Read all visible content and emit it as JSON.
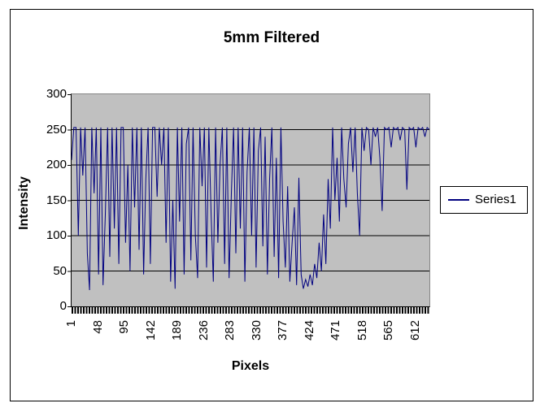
{
  "chart_data": {
    "type": "line",
    "title": "5mm Filtered",
    "xlabel": "Pixels",
    "ylabel": "Intensity",
    "ylim": [
      0,
      300
    ],
    "yticks": [
      0,
      50,
      100,
      150,
      200,
      250,
      300
    ],
    "xticks": [
      1,
      48,
      95,
      142,
      189,
      236,
      283,
      330,
      377,
      424,
      471,
      518,
      565,
      612
    ],
    "grid": true,
    "legend_position": "right",
    "plot_background": "#c0c0c0",
    "grid_color": "#000000",
    "series": [
      {
        "name": "Series1",
        "color": "#000080",
        "x_start": 1,
        "x_step": 4,
        "values": [
          207,
          253,
          253,
          100,
          253,
          185,
          253,
          75,
          23,
          253,
          160,
          253,
          45,
          253,
          30,
          130,
          253,
          70,
          253,
          110,
          253,
          60,
          253,
          253,
          90,
          200,
          50,
          253,
          140,
          253,
          80,
          253,
          45,
          180,
          253,
          60,
          253,
          253,
          155,
          253,
          200,
          253,
          90,
          253,
          35,
          150,
          25,
          253,
          120,
          253,
          45,
          230,
          253,
          65,
          253,
          100,
          40,
          253,
          170,
          253,
          55,
          253,
          130,
          35,
          253,
          90,
          200,
          253,
          60,
          253,
          40,
          160,
          253,
          75,
          253,
          110,
          253,
          35,
          190,
          253,
          100,
          253,
          55,
          220,
          253,
          85,
          240,
          45,
          180,
          253,
          70,
          210,
          40,
          253,
          120,
          55,
          170,
          35,
          90,
          140,
          30,
          182,
          45,
          25,
          38,
          28,
          45,
          30,
          60,
          40,
          90,
          50,
          130,
          60,
          180,
          110,
          253,
          150,
          210,
          120,
          253,
          180,
          140,
          230,
          253,
          190,
          253,
          160,
          100,
          253,
          220,
          253,
          250,
          200,
          253,
          240,
          253,
          210,
          135,
          253,
          250,
          253,
          225,
          253,
          250,
          253,
          235,
          253,
          250,
          165,
          253,
          250,
          253,
          225,
          253,
          250,
          253,
          240,
          253,
          250
        ]
      }
    ]
  }
}
